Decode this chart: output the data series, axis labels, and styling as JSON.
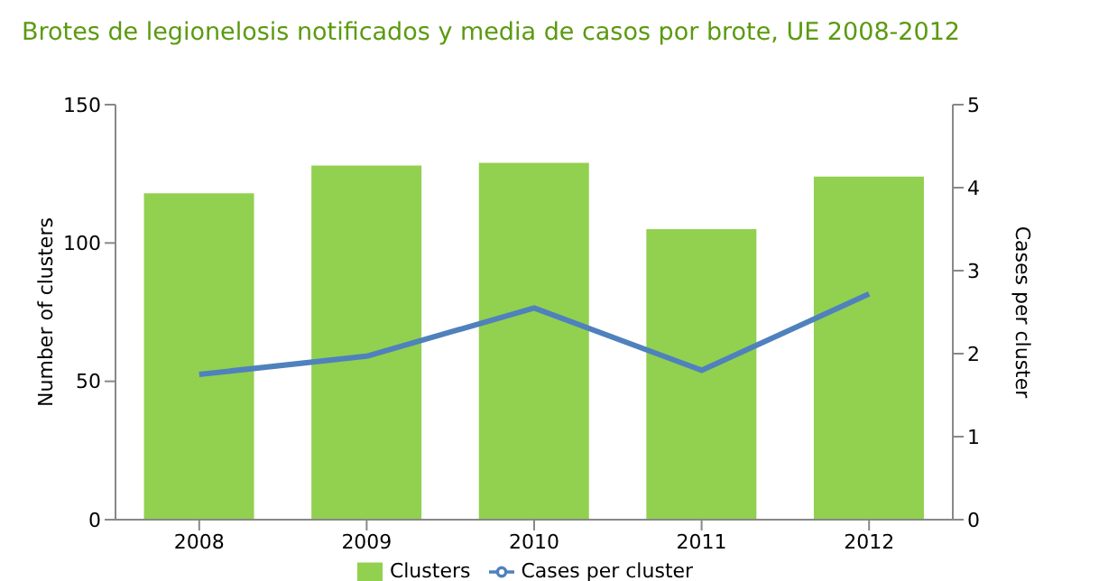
{
  "chart_data": {
    "type": "bar",
    "title": "Brotes de legionelosis notificados y media de casos por brote, UE 2008-2012",
    "ylabel": "Number of clusters",
    "y2label": "Cases per cluster",
    "categories": [
      "2008",
      "2009",
      "2010",
      "2011",
      "2012"
    ],
    "series": [
      {
        "name": "Clusters",
        "color": "#92d050",
        "values": [
          118,
          128,
          129,
          105,
          124
        ]
      },
      {
        "name": "Cases per cluster",
        "type": "line",
        "axis": "y2",
        "color": "#4f81bd",
        "values": [
          1.75,
          1.97,
          2.55,
          1.8,
          2.72
        ]
      }
    ],
    "ylim": [
      0,
      150
    ],
    "yticks": [
      0,
      50,
      100,
      150
    ],
    "y2lim": [
      0,
      5
    ],
    "y2ticks": [
      0,
      1,
      2,
      3,
      4,
      5
    ],
    "grid": false,
    "legend": "bottom",
    "marker": "none",
    "line_style": "solid"
  }
}
